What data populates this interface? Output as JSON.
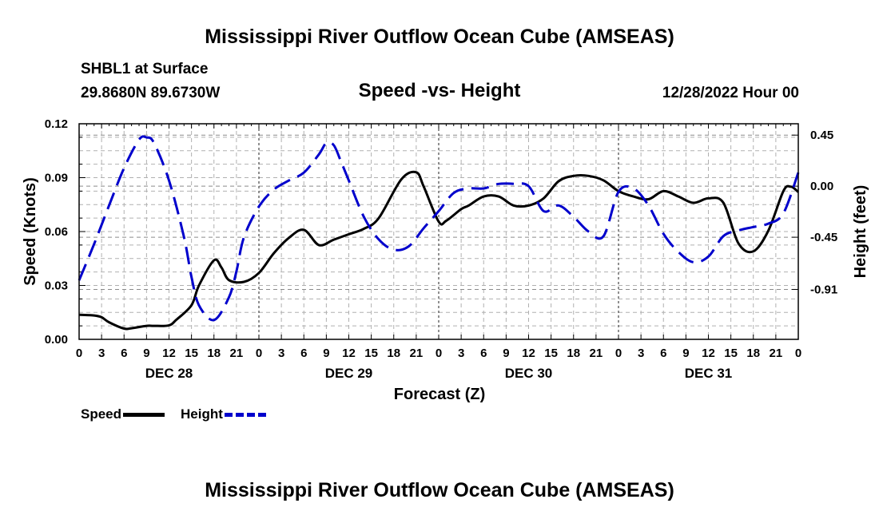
{
  "page": {
    "title": "Mississippi River Outflow Ocean Cube (AMSEAS)",
    "footer_title": "Mississippi River Outflow Ocean Cube (AMSEAS)",
    "station": "SHBL1 at Surface",
    "coords": "29.8680N  89.6730W",
    "subtitle": "Speed -vs- Height",
    "timestamp": "12/28/2022 Hour 00"
  },
  "chart_data": {
    "type": "line",
    "title": "Speed -vs- Height",
    "xlabel": "Forecast (Z)",
    "ylabel": "Speed (Knots)",
    "y2label": "Height (feet)",
    "xlim": [
      0,
      96
    ],
    "ylim": [
      0,
      0.12
    ],
    "y2lim": [
      -1.35,
      0.55
    ],
    "yticks": [
      "0.00",
      "0.03",
      "0.06",
      "0.09",
      "0.12"
    ],
    "yticks_values": [
      0,
      0.03,
      0.06,
      0.09,
      0.12
    ],
    "y2ticks": [
      "-0.91",
      "-0.45",
      "0.00",
      "0.45"
    ],
    "y2ticks_values": [
      -0.91,
      -0.45,
      0.0,
      0.45
    ],
    "xtick_labels": [
      "0",
      "3",
      "6",
      "9",
      "12",
      "15",
      "18",
      "21",
      "0",
      "3",
      "6",
      "9",
      "12",
      "15",
      "18",
      "21",
      "0",
      "3",
      "6",
      "9",
      "12",
      "15",
      "18",
      "21",
      "0",
      "3",
      "6",
      "9",
      "12",
      "15",
      "18",
      "21",
      "0"
    ],
    "day_labels": [
      {
        "label": "DEC 28",
        "x": 12
      },
      {
        "label": "DEC 29",
        "x": 36
      },
      {
        "label": "DEC 30",
        "x": 60
      },
      {
        "label": "DEC 31",
        "x": 84
      }
    ],
    "grid": true,
    "legend": {
      "placement": "bottom-left",
      "entries": [
        {
          "name": "Speed",
          "color": "#000000",
          "style": "solid"
        },
        {
          "name": "Height",
          "color": "#0000cc",
          "style": "dashed"
        }
      ]
    },
    "series": [
      {
        "name": "Speed",
        "axis": "left",
        "color": "#000000",
        "style": "solid",
        "x": [
          0,
          2,
          3,
          4,
          6,
          7,
          9,
          10,
          12,
          13,
          15,
          16,
          18,
          19,
          20,
          22,
          24,
          26,
          28,
          30,
          32,
          34,
          36,
          38,
          40,
          43,
          45,
          46,
          48,
          49,
          51,
          52,
          54,
          56,
          58,
          60,
          62,
          64,
          66,
          68,
          70,
          72,
          74,
          76,
          78,
          80,
          82,
          84,
          86,
          88,
          90,
          92,
          94,
          95,
          96
        ],
        "y": [
          0.0137,
          0.0133,
          0.0123,
          0.0095,
          0.006,
          0.0062,
          0.0075,
          0.0075,
          0.0078,
          0.011,
          0.019,
          0.03,
          0.044,
          0.04,
          0.033,
          0.032,
          0.037,
          0.048,
          0.0565,
          0.061,
          0.0525,
          0.0555,
          0.0585,
          0.0615,
          0.0675,
          0.089,
          0.093,
          0.085,
          0.0655,
          0.066,
          0.0725,
          0.0745,
          0.0795,
          0.0795,
          0.0745,
          0.0745,
          0.0785,
          0.088,
          0.091,
          0.091,
          0.0885,
          0.0825,
          0.0795,
          0.078,
          0.0825,
          0.0795,
          0.076,
          0.0785,
          0.076,
          0.0535,
          0.049,
          0.0605,
          0.0825,
          0.085,
          0.082
        ]
      },
      {
        "name": "Height",
        "axis": "right",
        "color": "#0000cc",
        "style": "dashed",
        "x": [
          0,
          2,
          4,
          6,
          8,
          9,
          10,
          12,
          14,
          15,
          16,
          18,
          20,
          21,
          22,
          24,
          26,
          28,
          30,
          32,
          33,
          34,
          35,
          36,
          38,
          40,
          42,
          44,
          46,
          48,
          50,
          52,
          54,
          56,
          58,
          60,
          62,
          64,
          66,
          68,
          70,
          72,
          74,
          76,
          78,
          80,
          82,
          84,
          86,
          88,
          90,
          92,
          94,
          96
        ],
        "y": [
          -0.83,
          -0.51,
          -0.17,
          0.16,
          0.41,
          0.43,
          0.38,
          0.05,
          -0.45,
          -0.8,
          -1.05,
          -1.18,
          -0.98,
          -0.75,
          -0.45,
          -0.18,
          -0.03,
          0.05,
          0.12,
          0.28,
          0.38,
          0.36,
          0.21,
          0.05,
          -0.27,
          -0.47,
          -0.56,
          -0.53,
          -0.37,
          -0.22,
          -0.06,
          -0.02,
          -0.02,
          0.02,
          0.02,
          0.0,
          -0.22,
          -0.17,
          -0.27,
          -0.4,
          -0.44,
          -0.05,
          -0.02,
          -0.17,
          -0.42,
          -0.58,
          -0.67,
          -0.62,
          -0.44,
          -0.39,
          -0.36,
          -0.33,
          -0.24,
          0.12
        ]
      }
    ]
  }
}
